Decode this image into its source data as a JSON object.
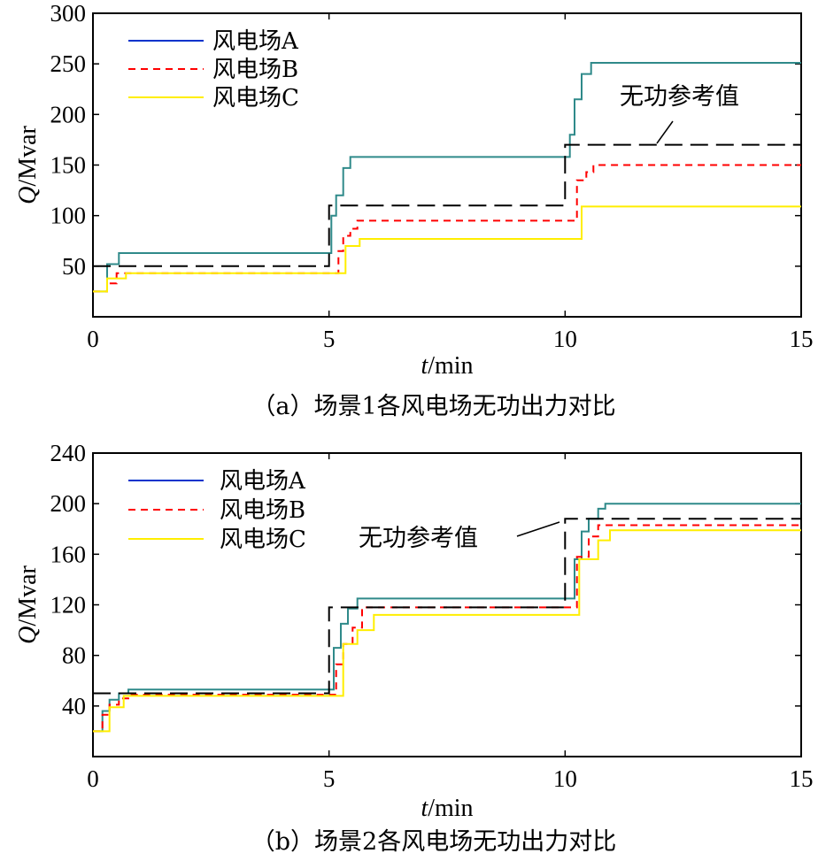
{
  "chart_data": [
    {
      "type": "line",
      "caption": "（a）场景1各风电场无功出力对比",
      "xlabel_var": "t",
      "xlabel_unit": "/min",
      "ylabel_var": "Q",
      "ylabel_unit": "/Mvar",
      "xlim": [
        0,
        15
      ],
      "ylim": [
        0,
        300
      ],
      "xticks": [
        "0",
        "5",
        "10",
        "15"
      ],
      "yticks": [
        "50",
        "100",
        "150",
        "200",
        "250",
        "300"
      ],
      "legend_position": "top-left",
      "annotation": "无功参考值",
      "series": [
        {
          "name": "风电场A",
          "color": "#2f8a8a",
          "legend_color": "#0033cc",
          "style": "solid",
          "points": [
            [
              0,
              25
            ],
            [
              0.3,
              25
            ],
            [
              0.3,
              52
            ],
            [
              0.55,
              52
            ],
            [
              0.55,
              63
            ],
            [
              5.05,
              63
            ],
            [
              5.05,
              100
            ],
            [
              5.15,
              100
            ],
            [
              5.15,
              120
            ],
            [
              5.3,
              120
            ],
            [
              5.3,
              147
            ],
            [
              5.45,
              147
            ],
            [
              5.45,
              158
            ],
            [
              10.1,
              158
            ],
            [
              10.1,
              180
            ],
            [
              10.2,
              180
            ],
            [
              10.2,
              215
            ],
            [
              10.35,
              215
            ],
            [
              10.35,
              240
            ],
            [
              10.55,
              240
            ],
            [
              10.55,
              251
            ],
            [
              15,
              251
            ]
          ]
        },
        {
          "name": "风电场B",
          "color": "#ff0000",
          "legend_color": "#ff0000",
          "style": "dashed",
          "points": [
            [
              0,
              25
            ],
            [
              0.3,
              25
            ],
            [
              0.3,
              33
            ],
            [
              0.5,
              33
            ],
            [
              0.5,
              43
            ],
            [
              5.2,
              43
            ],
            [
              5.2,
              65
            ],
            [
              5.3,
              65
            ],
            [
              5.3,
              80
            ],
            [
              5.45,
              80
            ],
            [
              5.45,
              87
            ],
            [
              5.6,
              87
            ],
            [
              5.6,
              95
            ],
            [
              10.25,
              95
            ],
            [
              10.25,
              135
            ],
            [
              10.45,
              135
            ],
            [
              10.45,
              143
            ],
            [
              10.6,
              143
            ],
            [
              10.6,
              150
            ],
            [
              15,
              150
            ]
          ]
        },
        {
          "name": "风电场C",
          "color": "#ffee00",
          "legend_color": "#ffee00",
          "style": "solid",
          "points": [
            [
              0,
              25
            ],
            [
              0.3,
              25
            ],
            [
              0.3,
              38
            ],
            [
              0.7,
              38
            ],
            [
              0.7,
              43
            ],
            [
              5.35,
              43
            ],
            [
              5.35,
              70
            ],
            [
              5.65,
              70
            ],
            [
              5.65,
              77
            ],
            [
              10.35,
              77
            ],
            [
              10.35,
              109
            ],
            [
              15,
              109
            ]
          ]
        },
        {
          "name": "无功参考值",
          "color": "#000000",
          "legend_color": "#000000",
          "style": "longdash",
          "points": [
            [
              0,
              50
            ],
            [
              5,
              50
            ],
            [
              5,
              110
            ],
            [
              10,
              110
            ],
            [
              10,
              170
            ],
            [
              15,
              170
            ]
          ]
        }
      ]
    },
    {
      "type": "line",
      "caption": "（b）场景2各风电场无功出力对比",
      "xlabel_var": "t",
      "xlabel_unit": "/min",
      "ylabel_var": "Q",
      "ylabel_unit": "/Mvar",
      "xlim": [
        0,
        15
      ],
      "ylim": [
        0,
        240
      ],
      "xticks": [
        "0",
        "5",
        "10",
        "15"
      ],
      "yticks": [
        "40",
        "80",
        "120",
        "160",
        "200",
        "240"
      ],
      "legend_position": "top-left",
      "annotation": "无功参考值",
      "series": [
        {
          "name": "风电场A",
          "color": "#2f8a8a",
          "legend_color": "#0033cc",
          "style": "solid",
          "points": [
            [
              0,
              20
            ],
            [
              0.2,
              20
            ],
            [
              0.2,
              36
            ],
            [
              0.35,
              36
            ],
            [
              0.35,
              45
            ],
            [
              0.55,
              45
            ],
            [
              0.55,
              50
            ],
            [
              0.75,
              50
            ],
            [
              0.75,
              53
            ],
            [
              5.1,
              53
            ],
            [
              5.1,
              86
            ],
            [
              5.25,
              86
            ],
            [
              5.25,
              105
            ],
            [
              5.4,
              105
            ],
            [
              5.4,
              117
            ],
            [
              5.6,
              117
            ],
            [
              5.6,
              125
            ],
            [
              10.2,
              125
            ],
            [
              10.2,
              156
            ],
            [
              10.35,
              156
            ],
            [
              10.35,
              178
            ],
            [
              10.5,
              178
            ],
            [
              10.5,
              188
            ],
            [
              10.7,
              188
            ],
            [
              10.7,
              196
            ],
            [
              10.85,
              196
            ],
            [
              10.85,
              200
            ],
            [
              15,
              200
            ]
          ]
        },
        {
          "name": "风电场B",
          "color": "#ff0000",
          "legend_color": "#ff0000",
          "style": "dashed",
          "points": [
            [
              0,
              20
            ],
            [
              0.2,
              20
            ],
            [
              0.2,
              33
            ],
            [
              0.35,
              33
            ],
            [
              0.35,
              41
            ],
            [
              0.55,
              41
            ],
            [
              0.55,
              46
            ],
            [
              0.75,
              46
            ],
            [
              0.75,
              49
            ],
            [
              5.15,
              49
            ],
            [
              5.15,
              73
            ],
            [
              5.3,
              73
            ],
            [
              5.3,
              89
            ],
            [
              5.5,
              89
            ],
            [
              5.5,
              102
            ],
            [
              5.7,
              102
            ],
            [
              5.7,
              118
            ],
            [
              10.25,
              118
            ],
            [
              10.25,
              158
            ],
            [
              10.5,
              158
            ],
            [
              10.5,
              174
            ],
            [
              10.7,
              174
            ],
            [
              10.7,
              183
            ],
            [
              15,
              183
            ]
          ]
        },
        {
          "name": "风电场C",
          "color": "#ffee00",
          "legend_color": "#ffee00",
          "style": "solid",
          "points": [
            [
              0,
              20
            ],
            [
              0.35,
              20
            ],
            [
              0.35,
              39
            ],
            [
              0.65,
              39
            ],
            [
              0.65,
              48
            ],
            [
              5.3,
              48
            ],
            [
              5.3,
              89
            ],
            [
              5.6,
              89
            ],
            [
              5.6,
              100
            ],
            [
              5.95,
              100
            ],
            [
              5.95,
              112
            ],
            [
              10.3,
              112
            ],
            [
              10.3,
              156
            ],
            [
              10.7,
              156
            ],
            [
              10.7,
              171
            ],
            [
              10.95,
              171
            ],
            [
              10.95,
              179
            ],
            [
              15,
              179
            ]
          ]
        },
        {
          "name": "无功参考值",
          "color": "#000000",
          "legend_color": "#000000",
          "style": "longdash",
          "points": [
            [
              0,
              50
            ],
            [
              5,
              50
            ],
            [
              5,
              118
            ],
            [
              10,
              118
            ],
            [
              10,
              188
            ],
            [
              15,
              188
            ]
          ]
        }
      ]
    }
  ]
}
